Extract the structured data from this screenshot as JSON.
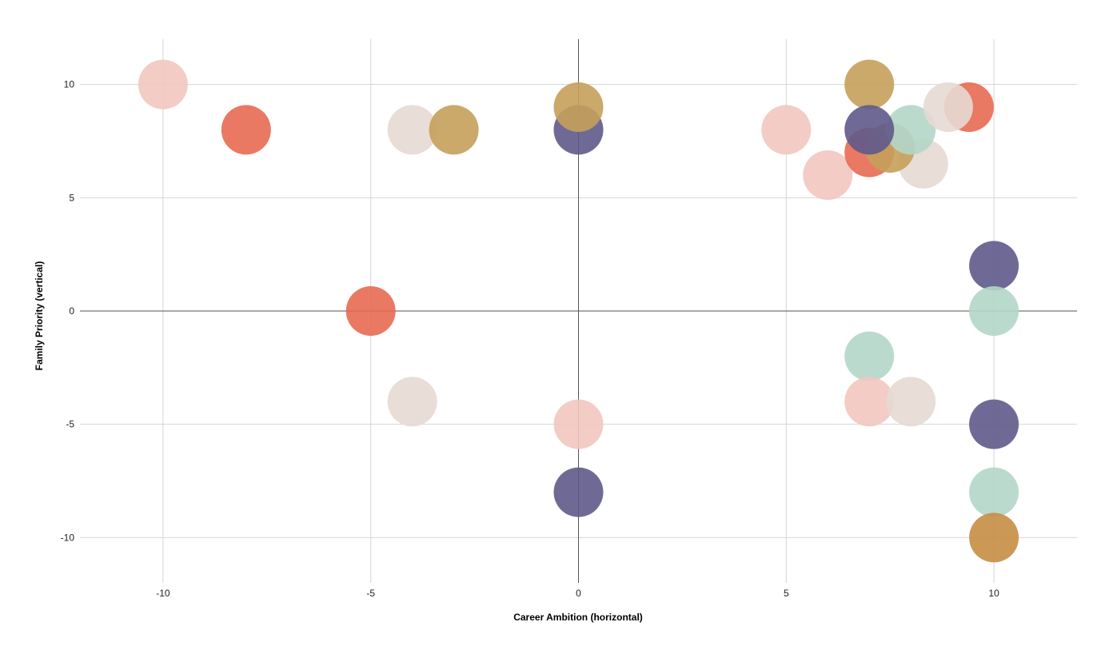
{
  "chart_data": {
    "type": "scatter",
    "title": "",
    "xlabel": "Career Ambition (horizontal)",
    "ylabel": "Family Priority (vertical)",
    "xlim": [
      -12,
      12
    ],
    "ylim": [
      -12,
      12
    ],
    "xticks": [
      -10,
      -5,
      0,
      5,
      10
    ],
    "yticks": [
      -10,
      -5,
      0,
      5,
      10
    ],
    "grid": true,
    "legend": "none",
    "zero_line_color": "#555555",
    "grid_color": "#d4d4d4",
    "colors": {
      "pink": "#f2c6c0",
      "coral": "#e76a52",
      "taupe": "#e5d9d3",
      "gold": "#c5a05a",
      "navy": "#5f5a8a",
      "mint": "#b2d6c8",
      "amber": "#c78d44"
    },
    "points": [
      {
        "x": -10,
        "y": 10,
        "color": "pink"
      },
      {
        "x": -8,
        "y": 8,
        "color": "coral"
      },
      {
        "x": -4,
        "y": 8,
        "color": "taupe"
      },
      {
        "x": -3,
        "y": 8,
        "color": "gold"
      },
      {
        "x": 0,
        "y": 8,
        "color": "navy"
      },
      {
        "x": 0,
        "y": 9,
        "color": "gold"
      },
      {
        "x": 5,
        "y": 8,
        "color": "pink"
      },
      {
        "x": 6,
        "y": 6,
        "color": "pink"
      },
      {
        "x": 8.3,
        "y": 6.5,
        "color": "taupe"
      },
      {
        "x": 7,
        "y": 7,
        "color": "coral"
      },
      {
        "x": 7.5,
        "y": 7.2,
        "color": "gold"
      },
      {
        "x": 8,
        "y": 8,
        "color": "mint"
      },
      {
        "x": 9.4,
        "y": 9,
        "color": "coral"
      },
      {
        "x": 8.9,
        "y": 9,
        "color": "taupe"
      },
      {
        "x": 7,
        "y": 10,
        "color": "gold"
      },
      {
        "x": 7,
        "y": 8,
        "color": "navy"
      },
      {
        "x": 10,
        "y": 2,
        "color": "navy"
      },
      {
        "x": 10,
        "y": 0,
        "color": "mint"
      },
      {
        "x": -5,
        "y": 0,
        "color": "coral"
      },
      {
        "x": -4,
        "y": -4,
        "color": "taupe"
      },
      {
        "x": 0,
        "y": -5,
        "color": "pink"
      },
      {
        "x": 0,
        "y": -8,
        "color": "navy"
      },
      {
        "x": 7,
        "y": -2,
        "color": "mint"
      },
      {
        "x": 7,
        "y": -4,
        "color": "pink"
      },
      {
        "x": 8,
        "y": -4,
        "color": "taupe"
      },
      {
        "x": 10,
        "y": -5,
        "color": "navy"
      },
      {
        "x": 10,
        "y": -8,
        "color": "mint"
      },
      {
        "x": 10,
        "y": -10,
        "color": "amber"
      }
    ]
  }
}
